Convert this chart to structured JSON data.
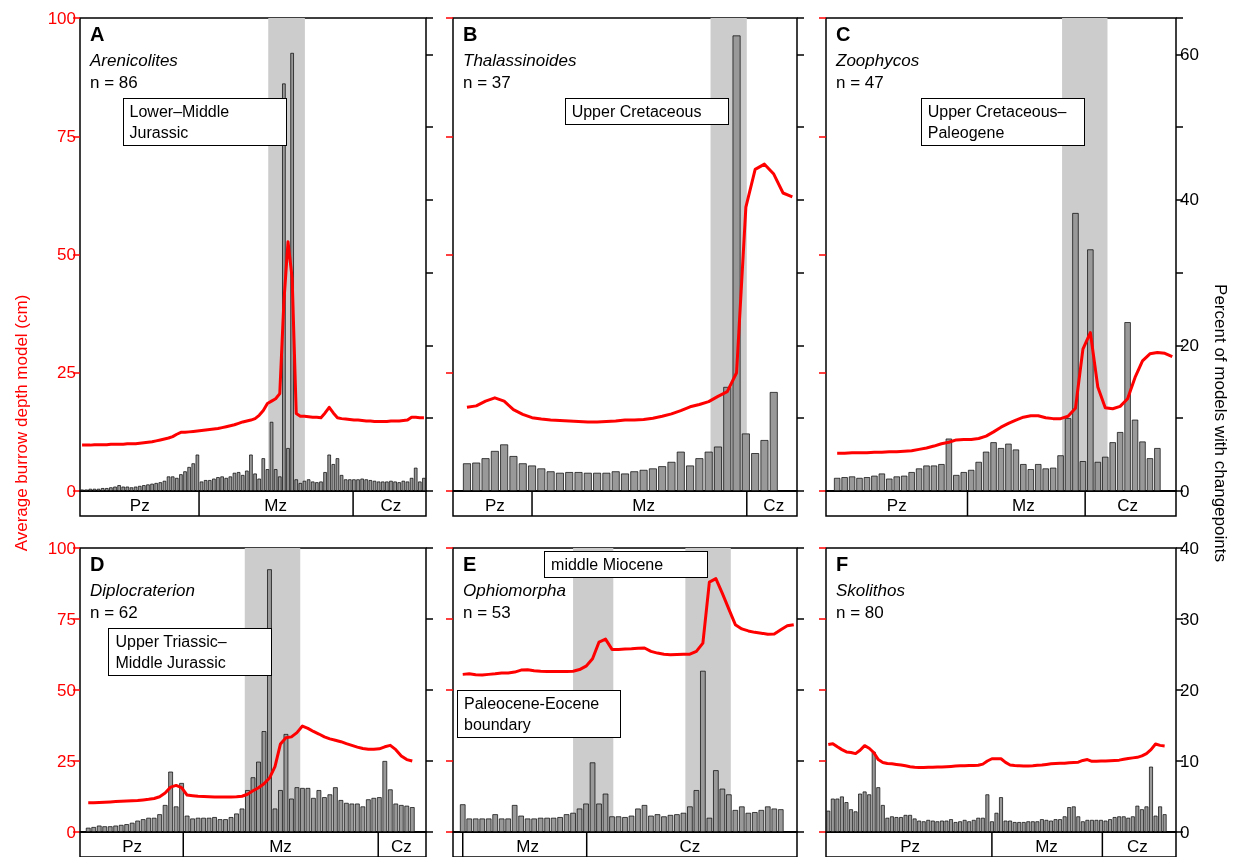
{
  "chart_data": [
    {
      "type": "bar",
      "title": "A",
      "subtitle": "Arenicolites",
      "annotations": [
        "n = 86",
        "Lower–Middle Jurassic"
      ],
      "ylabel": "Average burrow depth model (cm)",
      "categories": [
        null,
        null,
        null,
        null,
        null,
        null,
        null,
        null,
        null,
        null,
        null,
        null,
        null,
        null,
        "Pz",
        null,
        null,
        null,
        null,
        null,
        null,
        null,
        null,
        null,
        null,
        null,
        null,
        null,
        null,
        null,
        null,
        null,
        null,
        null,
        null,
        null,
        null,
        null,
        null,
        null,
        null,
        null,
        null,
        null,
        null,
        null,
        null,
        "Mz",
        null,
        null,
        null,
        null,
        null,
        null,
        null,
        null,
        null,
        null,
        null,
        null,
        null,
        null,
        null,
        null,
        null,
        null,
        null,
        null,
        null,
        null,
        null,
        null,
        null,
        null,
        null,
        "Cz",
        null,
        null,
        null,
        null,
        null,
        null,
        null,
        null
      ],
      "ylim": [
        0,
        100
      ],
      "yticks": [
        0,
        25,
        50,
        75,
        100
      ],
      "y2lim": [
        0,
        65
      ],
      "series": [
        {
          "axis": "y2",
          "color": "#999999",
          "values": [
            0.2,
            0.2,
            0.3,
            0.3,
            0.3,
            0.4,
            0.4,
            0.5,
            0.6,
            0.8,
            0.6,
            0.6,
            0.5,
            0.6,
            0.7,
            0.8,
            0.9,
            1,
            1.1,
            1.2,
            1.4,
            2,
            2,
            1.8,
            2.3,
            2.7,
            3.3,
            3.8,
            5,
            1.3,
            1.5,
            1.5,
            1.7,
            1.9,
            2,
            1.8,
            2,
            2.5,
            2.6,
            2.2,
            2.8,
            5,
            2.4,
            1.7,
            4.5,
            3,
            9.5,
            3,
            2,
            56,
            5.9,
            60.2,
            1.6,
            1.1,
            1.4,
            1.6,
            1.3,
            1.2,
            1.3,
            2.6,
            5,
            3.7,
            4.5,
            2.2,
            1.6,
            1.6,
            1.6,
            1.6,
            1.7,
            1.6,
            1.5,
            1.4,
            1.3,
            1.3,
            1.3,
            1.4,
            1.3,
            1.2,
            1.4,
            1.3,
            1.8,
            3.2,
            1.3,
            1.8
          ]
        },
        {
          "type": "line",
          "axis": "y",
          "color": "#ff0000",
          "values": [
            9.7,
            9.7,
            9.7,
            9.8,
            9.8,
            9.8,
            9.8,
            9.9,
            9.9,
            9.9,
            9.9,
            10,
            10,
            10,
            10.1,
            10.2,
            10.3,
            10.4,
            10.6,
            10.8,
            11,
            11.2,
            11.5,
            12,
            12.4,
            12.4,
            12.5,
            12.6,
            12.7,
            12.8,
            12.9,
            13,
            13.1,
            13.2,
            13.4,
            13.6,
            13.8,
            14,
            14.3,
            14.6,
            14.8,
            15,
            15.3,
            16,
            17,
            18.5,
            19,
            19.5,
            20.6,
            40,
            52.7,
            45,
            16.4,
            15.8,
            15.8,
            15.7,
            15.6,
            15.6,
            15.5,
            16.5,
            17.7,
            16.5,
            15.5,
            15.3,
            15.2,
            15.1,
            15,
            15,
            14.9,
            14.8,
            14.8,
            14.7,
            14.7,
            14.7,
            14.7,
            14.8,
            14.8,
            14.8,
            14.9,
            15,
            15.6,
            15.6,
            15.5,
            15.5
          ]
        }
      ]
    },
    {
      "type": "bar",
      "title": "B",
      "subtitle": "Thalassinoides",
      "annotations": [
        "n = 37",
        "Upper Cretaceous"
      ],
      "categories": [
        null,
        null,
        null,
        null,
        "Pz",
        null,
        null,
        null,
        null,
        null,
        null,
        null,
        null,
        null,
        null,
        null,
        null,
        null,
        null,
        null,
        "Mz",
        null,
        null,
        null,
        null,
        null,
        null,
        null,
        null,
        null,
        null,
        null,
        null,
        null,
        "Cz",
        null,
        null
      ],
      "ylim": [
        0,
        100
      ],
      "y2lim": [
        0,
        65
      ],
      "series": [
        {
          "axis": "y2",
          "color": "#999999",
          "values": [
            null,
            3.8,
            3.9,
            4.5,
            5.5,
            6.4,
            4.8,
            3.8,
            3.5,
            3.1,
            2.7,
            2.5,
            2.6,
            2.6,
            2.5,
            2.5,
            2.5,
            2.7,
            2.4,
            2.7,
            2.9,
            3.1,
            3.4,
            4,
            5.4,
            3.5,
            4.5,
            5.4,
            6.1,
            14.3,
            62.6,
            7.9,
            5.2,
            7,
            13.6,
            null,
            null
          ]
        },
        {
          "type": "line",
          "axis": "y",
          "color": "#ff0000",
          "values": [
            null,
            17.7,
            18,
            19,
            19.7,
            19,
            17.2,
            16.2,
            15.5,
            15.2,
            15,
            14.9,
            14.8,
            14.7,
            14.6,
            14.6,
            14.7,
            14.8,
            15,
            15,
            15.1,
            15.4,
            15.8,
            16.3,
            17,
            17.8,
            18.3,
            18.9,
            20,
            21,
            25,
            60,
            68,
            69.1,
            67,
            63,
            62.2
          ]
        }
      ]
    },
    {
      "type": "bar",
      "title": "C",
      "subtitle": "Zoophycos",
      "annotations": [
        "n = 47",
        "Upper Cretaceous–Paleogene"
      ],
      "y2label": "Percent of models with changepoints",
      "categories": [
        null,
        null,
        null,
        null,
        null,
        null,
        null,
        null,
        null,
        "Pz",
        null,
        null,
        null,
        null,
        null,
        null,
        null,
        null,
        null,
        null,
        null,
        null,
        null,
        null,
        null,
        null,
        "Mz",
        null,
        null,
        null,
        null,
        null,
        null,
        null,
        null,
        null,
        null,
        null,
        null,
        null,
        "Cz",
        null,
        null,
        null,
        null,
        null,
        null
      ],
      "ylim": [
        0,
        100
      ],
      "y2lim": [
        0,
        65
      ],
      "y2ticks": [
        0,
        {
          "value": 10,
          "label": null
        },
        20,
        {
          "value": 30,
          "label": null
        },
        40,
        {
          "value": 50,
          "label": null
        },
        60
      ],
      "series": [
        {
          "axis": "y2",
          "color": "#999999",
          "values": [
            null,
            1.8,
            1.9,
            2,
            1.8,
            1.9,
            2.1,
            2.4,
            1.7,
            2,
            2.1,
            2.6,
            3.1,
            3.5,
            3.5,
            3.7,
            7.2,
            2.2,
            2.6,
            2.9,
            4,
            5.4,
            6.7,
            5.9,
            6.5,
            5.7,
            3.7,
            3,
            3.7,
            3.1,
            3.2,
            4.9,
            10,
            38.2,
            4.1,
            33.2,
            4,
            4.7,
            6.7,
            8.1,
            23.2,
            9.8,
            6.8,
            4.5,
            5.9,
            null,
            null
          ]
        },
        {
          "type": "line",
          "axis": "y",
          "color": "#ff0000",
          "values": [
            null,
            8,
            8,
            8.1,
            8.1,
            8.1,
            8.2,
            8.2,
            8.3,
            8.3,
            8.4,
            8.5,
            8.8,
            9.1,
            9.5,
            10,
            10.3,
            10.8,
            10.9,
            10.9,
            11.1,
            11.6,
            12.5,
            13.5,
            14.3,
            15,
            15.6,
            15.9,
            15.9,
            15.5,
            15.3,
            15.3,
            15.8,
            17.5,
            30,
            33.5,
            22,
            17.6,
            17.4,
            17.9,
            19.5,
            24,
            27.5,
            29,
            29.3,
            29.1,
            28.4
          ]
        }
      ]
    },
    {
      "type": "bar",
      "title": "D",
      "subtitle": "Diplocraterion",
      "annotations": [
        "n = 62",
        "Upper Triassic–Middle Jurassic"
      ],
      "categories": [
        null,
        null,
        null,
        null,
        null,
        null,
        null,
        null,
        null,
        "Pz",
        null,
        null,
        null,
        null,
        null,
        null,
        null,
        null,
        null,
        null,
        null,
        null,
        null,
        null,
        null,
        null,
        null,
        null,
        null,
        null,
        null,
        null,
        null,
        null,
        null,
        null,
        "Mz",
        null,
        null,
        null,
        null,
        null,
        null,
        null,
        null,
        null,
        null,
        null,
        null,
        null,
        null,
        null,
        null,
        null,
        null,
        null,
        null,
        null,
        "Cz",
        null,
        null,
        null,
        null
      ],
      "ylim": [
        0,
        100
      ],
      "yticks": [
        0,
        25,
        50,
        75,
        100
      ],
      "y2lim": [
        0,
        40
      ],
      "series": [
        {
          "axis": "y2",
          "color": "#999999",
          "values": [
            null,
            0.6,
            0.7,
            0.9,
            0.8,
            0.8,
            0.9,
            1,
            1.1,
            1.3,
            1.6,
            1.8,
            2,
            2,
            2.5,
            3.8,
            8.5,
            3.6,
            6.9,
            2.3,
            1.9,
            2,
            2,
            2,
            2.1,
            1.8,
            1.8,
            2.1,
            2.6,
            3.3,
            5.9,
            7.7,
            9.9,
            14.2,
            37,
            3.3,
            5.9,
            13.8,
            4.7,
            6.3,
            6.2,
            6.2,
            4.8,
            5.9,
            4.9,
            5.3,
            6.3,
            4.5,
            4.1,
            4,
            4,
            3.6,
            4.6,
            4.8,
            4.9,
            10,
            6,
            4,
            3.8,
            3.7,
            3.5,
            null,
            null
          ]
        },
        {
          "type": "line",
          "axis": "y",
          "color": "#ff0000",
          "values": [
            null,
            10.3,
            10.3,
            10.4,
            10.5,
            10.6,
            10.7,
            10.8,
            10.9,
            11,
            11.1,
            11.3,
            11.5,
            11.8,
            12.4,
            13.7,
            15.8,
            16.4,
            15.6,
            13,
            12.8,
            12.6,
            12.5,
            12.4,
            12.3,
            12.3,
            12.3,
            12.3,
            12.4,
            12.6,
            13.3,
            14.5,
            15.6,
            17,
            19,
            23,
            31,
            33.2,
            33.5,
            35,
            37.3,
            36.5,
            35.4,
            34.5,
            33.5,
            32.8,
            32.3,
            31.8,
            31.1,
            30.5,
            29.9,
            29.4,
            29.1,
            29.1,
            29.3,
            30,
            30.5,
            29,
            26.8,
            25.5,
            25,
            null,
            null
          ]
        }
      ]
    },
    {
      "type": "bar",
      "title": "E",
      "subtitle": "Ophiomorpha",
      "annotations": [
        "n = 53",
        "Paleocene-Eocene boundary",
        "middle Miocene"
      ],
      "categories": [
        null,
        null,
        null,
        null,
        null,
        null,
        null,
        null,
        null,
        null,
        null,
        "Mz",
        null,
        null,
        null,
        null,
        null,
        null,
        null,
        null,
        null,
        null,
        null,
        null,
        null,
        null,
        null,
        null,
        null,
        null,
        null,
        null,
        null,
        null,
        null,
        null,
        "Cz",
        null,
        null,
        null,
        null,
        null,
        null,
        null,
        null,
        null,
        null,
        null,
        null,
        null,
        null,
        null,
        null
      ],
      "ylim": [
        0,
        100
      ],
      "y2lim": [
        0,
        40
      ],
      "series": [
        {
          "axis": "y2",
          "color": "#999999",
          "values": [
            null,
            3.9,
            1.9,
            1.9,
            1.9,
            1.9,
            2.5,
            1.9,
            1.9,
            3.8,
            2.3,
            1.9,
            1.9,
            2,
            2,
            2,
            2.1,
            2.5,
            2.7,
            3.3,
            4,
            9.8,
            4,
            5.4,
            2.2,
            2.2,
            2.1,
            2.3,
            3.3,
            3.8,
            2.3,
            2.5,
            2.2,
            2.4,
            2.5,
            2.7,
            3.6,
            5.9,
            22.7,
            2,
            8.7,
            6.1,
            5.3,
            3.1,
            3.6,
            2.7,
            2.8,
            3.1,
            3.6,
            3.3,
            3.2,
            null,
            null
          ]
        },
        {
          "type": "line",
          "axis": "y",
          "color": "#ff0000",
          "values": [
            null,
            55.5,
            55.7,
            55.4,
            55.3,
            55.5,
            55.7,
            56,
            56,
            56.3,
            57,
            57.1,
            56.8,
            56.6,
            56.5,
            56.5,
            56.5,
            56.5,
            56.6,
            57.2,
            58.4,
            61,
            66.9,
            67.9,
            64.3,
            64.3,
            64.4,
            64.5,
            64.7,
            64.8,
            63.6,
            63,
            62.6,
            62.4,
            62.5,
            62.6,
            62.6,
            63.6,
            66.5,
            88,
            89.2,
            84,
            78.5,
            73,
            71.5,
            70.8,
            70.3,
            70,
            69.6,
            69.7,
            71.2,
            72.6,
            73
          ]
        }
      ]
    },
    {
      "type": "bar",
      "title": "F",
      "subtitle": "Skolithos",
      "annotations": [
        "n = 80"
      ],
      "categories": [
        null,
        null,
        null,
        null,
        null,
        null,
        null,
        null,
        null,
        null,
        null,
        null,
        null,
        null,
        null,
        null,
        null,
        null,
        "Pz",
        null,
        null,
        null,
        null,
        null,
        null,
        null,
        null,
        null,
        null,
        null,
        null,
        null,
        null,
        null,
        null,
        null,
        null,
        null,
        null,
        null,
        null,
        null,
        null,
        null,
        null,
        null,
        null,
        null,
        "Mz",
        null,
        null,
        null,
        null,
        null,
        null,
        null,
        null,
        null,
        null,
        null,
        null,
        null,
        null,
        null,
        null,
        null,
        null,
        null,
        "Cz",
        null,
        null,
        null,
        null,
        null,
        null,
        null,
        null
      ],
      "ylim": [
        0,
        100
      ],
      "y2lim": [
        0,
        40
      ],
      "y2ticks": [
        0,
        10,
        20,
        30,
        40
      ],
      "series": [
        {
          "axis": "y2",
          "color": "#999999",
          "values": [
            3,
            4.7,
            4.7,
            5,
            4.2,
            3.2,
            2.9,
            5.4,
            5.7,
            5.3,
            11.3,
            6.3,
            3.8,
            2,
            2.2,
            2.1,
            2.1,
            2.4,
            2.4,
            1.9,
            1.6,
            1.5,
            1.7,
            1.6,
            1.5,
            1.6,
            1.6,
            1.8,
            1.4,
            1.5,
            1.7,
            1.5,
            1.7,
            2,
            2,
            5.3,
            1.5,
            2.7,
            4.9,
            1.6,
            1.6,
            1.4,
            1.4,
            1.4,
            1.5,
            1.5,
            1.5,
            1.8,
            1.7,
            1.6,
            1.8,
            1.8,
            2.2,
            3.5,
            3.6,
            2.2,
            1.5,
            1.7,
            1.7,
            1.7,
            1.7,
            1.6,
            1.8,
            2.1,
            2.2,
            2.2,
            2,
            2.2,
            3.7,
            3.2,
            3.6,
            9.2,
            2.3,
            3.6,
            2.5,
            null,
            null
          ]
        },
        {
          "type": "line",
          "axis": "y",
          "color": "#ff0000",
          "values": [
            30.8,
            31.1,
            30,
            29,
            28.2,
            28,
            27.6,
            28.8,
            30.4,
            29.5,
            28,
            25.5,
            24.5,
            24.1,
            24,
            23.8,
            23.6,
            23.3,
            23,
            22.8,
            22.7,
            22.7,
            22.8,
            22.8,
            22.9,
            22.9,
            23,
            23.1,
            23.2,
            23.3,
            23.3,
            23.4,
            23.4,
            23.5,
            23.9,
            25,
            25.8,
            25.8,
            25.8,
            24.5,
            23.6,
            23.4,
            23.3,
            23.2,
            23.2,
            23.3,
            23.5,
            23.6,
            23.8,
            24,
            24.1,
            24.2,
            24.2,
            24.4,
            24.5,
            24.6,
            25.2,
            25.5,
            24.9,
            24.9,
            25,
            25,
            25.1,
            25.2,
            25.3,
            25.6,
            25.9,
            26.1,
            26.3,
            26.8,
            27.6,
            29,
            31,
            30.5,
            30.3,
            null,
            null
          ]
        }
      ]
    }
  ]
}
